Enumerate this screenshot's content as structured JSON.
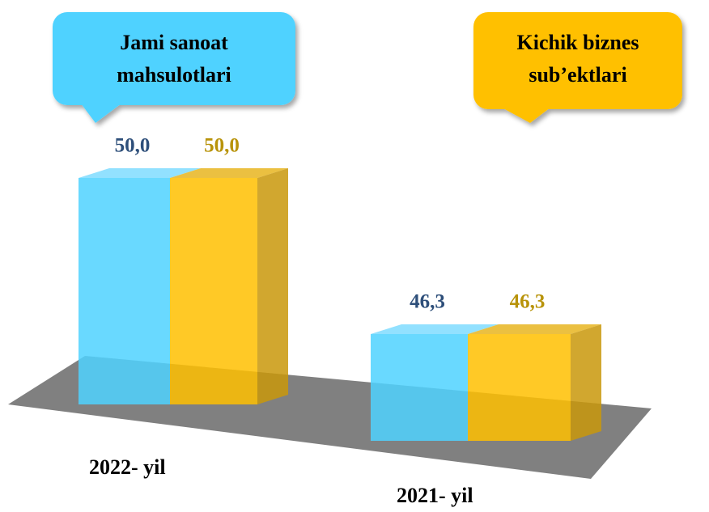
{
  "chart_data": {
    "type": "bar3d",
    "categories": [
      "2022- yil",
      "2021- yil"
    ],
    "series": [
      {
        "name": "Jami sanoat mahsulotlari",
        "color": "#4fd2ff",
        "values": [
          50.0,
          46.3
        ],
        "value_labels": [
          "50,0",
          "46,3"
        ]
      },
      {
        "name": "Kichik biznes sub’ektlari",
        "color": "#ffc000",
        "values": [
          50.0,
          46.3
        ],
        "value_labels": [
          "50,0",
          "46,3"
        ]
      }
    ],
    "ylim": [
      43,
      51
    ]
  }
}
